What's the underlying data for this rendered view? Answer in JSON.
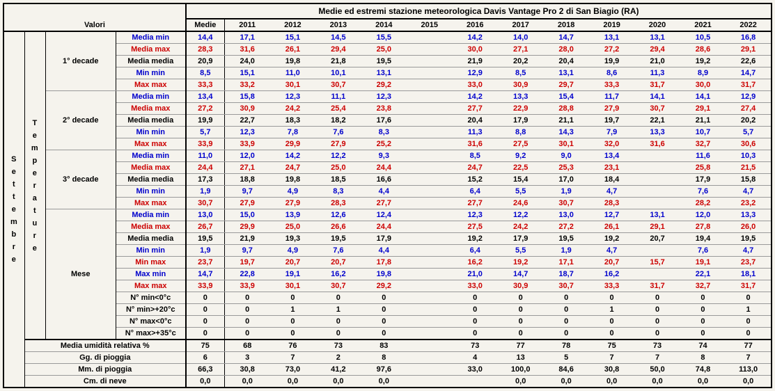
{
  "title": "Medie ed estremi stazione meteorologica Davis Vantage Pro 2 di San Biagio (RA)",
  "valori_label": "Valori",
  "medie_label": "Medie",
  "years": [
    "2011",
    "2012",
    "2013",
    "2014",
    "2015",
    "2016",
    "2017",
    "2018",
    "2019",
    "2020",
    "2021",
    "2022"
  ],
  "month": "Settembre",
  "temp_label": "Temperature",
  "decades": [
    "1° decade",
    "2° decade",
    "3° decade",
    "Mese"
  ],
  "stat_labels": {
    "media_min": "Media min",
    "media_max": "Media max",
    "media_media": "Media media",
    "min_min": "Min min",
    "max_max": "Max max",
    "min_max": "Min max",
    "max_min": "Max min",
    "n_min_lt0": "N° min<0°c",
    "n_min_gt20": "N° min>+20°c",
    "n_max_lt0": "N° max<0°c",
    "n_max_gt35": "N° max>+35°c"
  },
  "footer_labels": {
    "humidity": "Media umidità relativa %",
    "rain_days": "Gg. di pioggia",
    "rain_mm": "Mm. di pioggia",
    "snow_cm": "Cm. di neve"
  },
  "style_map": {
    "media_min": "blue",
    "media_max": "red",
    "media_media": "bold",
    "min_min": "blue",
    "max_max": "red",
    "min_max": "red",
    "max_min": "blue",
    "n_min_lt0": "bold",
    "n_min_gt20": "bold",
    "n_max_lt0": "bold",
    "n_max_gt35": "bold"
  },
  "blocks": [
    {
      "decade": "1° decade",
      "rows": [
        {
          "k": "media_min",
          "m": "14,4",
          "v": [
            "17,1",
            "15,1",
            "14,5",
            "15,5",
            "",
            "14,2",
            "14,0",
            "14,7",
            "13,1",
            "13,1",
            "10,5",
            "16,8"
          ]
        },
        {
          "k": "media_max",
          "m": "28,3",
          "v": [
            "31,6",
            "26,1",
            "29,4",
            "25,0",
            "",
            "30,0",
            "27,1",
            "28,0",
            "27,2",
            "29,4",
            "28,6",
            "29,1"
          ]
        },
        {
          "k": "media_media",
          "m": "20,9",
          "v": [
            "24,0",
            "19,8",
            "21,8",
            "19,5",
            "",
            "21,9",
            "20,2",
            "20,4",
            "19,9",
            "21,0",
            "19,2",
            "22,6"
          ]
        },
        {
          "k": "min_min",
          "m": "8,5",
          "v": [
            "15,1",
            "11,0",
            "10,1",
            "13,1",
            "",
            "12,9",
            "8,5",
            "13,1",
            "8,6",
            "11,3",
            "8,9",
            "14,7"
          ]
        },
        {
          "k": "max_max",
          "m": "33,3",
          "v": [
            "33,2",
            "30,1",
            "30,7",
            "29,2",
            "",
            "33,0",
            "30,9",
            "29,7",
            "33,3",
            "31,7",
            "30,0",
            "31,7"
          ]
        }
      ]
    },
    {
      "decade": "2° decade",
      "rows": [
        {
          "k": "media_min",
          "m": "13,4",
          "v": [
            "15,8",
            "12,3",
            "11,1",
            "12,3",
            "",
            "14,2",
            "13,3",
            "15,4",
            "11,7",
            "14,1",
            "14,1",
            "12,9"
          ]
        },
        {
          "k": "media_max",
          "m": "27,2",
          "v": [
            "30,9",
            "24,2",
            "25,4",
            "23,8",
            "",
            "27,7",
            "22,9",
            "28,8",
            "27,9",
            "30,7",
            "29,1",
            "27,4"
          ]
        },
        {
          "k": "media_media",
          "m": "19,9",
          "v": [
            "22,7",
            "18,3",
            "18,2",
            "17,6",
            "",
            "20,4",
            "17,9",
            "21,1",
            "19,7",
            "22,1",
            "21,1",
            "20,2"
          ]
        },
        {
          "k": "min_min",
          "m": "5,7",
          "v": [
            "12,3",
            "7,8",
            "7,6",
            "8,3",
            "",
            "11,3",
            "8,8",
            "14,3",
            "7,9",
            "13,3",
            "10,7",
            "5,7"
          ]
        },
        {
          "k": "max_max",
          "m": "33,9",
          "v": [
            "33,9",
            "29,9",
            "27,9",
            "25,2",
            "",
            "31,6",
            "27,5",
            "30,1",
            "32,0",
            "31,6",
            "32,7",
            "30,6"
          ]
        }
      ]
    },
    {
      "decade": "3° decade",
      "rows": [
        {
          "k": "media_min",
          "m": "11,0",
          "v": [
            "12,0",
            "14,2",
            "12,2",
            "9,3",
            "",
            "8,5",
            "9,2",
            "9,0",
            "13,4",
            "",
            "11,6",
            "10,3"
          ]
        },
        {
          "k": "media_max",
          "m": "24,4",
          "v": [
            "27,1",
            "24,7",
            "25,0",
            "24,4",
            "",
            "24,7",
            "22,5",
            "25,3",
            "23,1",
            "",
            "25,8",
            "21,5"
          ]
        },
        {
          "k": "media_media",
          "m": "17,3",
          "v": [
            "18,8",
            "19,8",
            "18,5",
            "16,6",
            "",
            "15,2",
            "15,4",
            "17,0",
            "18,4",
            "",
            "17,9",
            "15,8"
          ]
        },
        {
          "k": "min_min",
          "m": "1,9",
          "v": [
            "9,7",
            "4,9",
            "8,3",
            "4,4",
            "",
            "6,4",
            "5,5",
            "1,9",
            "4,7",
            "",
            "7,6",
            "4,7"
          ]
        },
        {
          "k": "max_max",
          "m": "30,7",
          "v": [
            "27,9",
            "27,9",
            "28,3",
            "27,7",
            "",
            "27,7",
            "24,6",
            "30,7",
            "28,3",
            "",
            "28,2",
            "23,2"
          ]
        }
      ]
    },
    {
      "decade": "Mese",
      "rows": [
        {
          "k": "media_min",
          "m": "13,0",
          "v": [
            "15,0",
            "13,9",
            "12,6",
            "12,4",
            "",
            "12,3",
            "12,2",
            "13,0",
            "12,7",
            "13,1",
            "12,0",
            "13,3"
          ]
        },
        {
          "k": "media_max",
          "m": "26,7",
          "v": [
            "29,9",
            "25,0",
            "26,6",
            "24,4",
            "",
            "27,5",
            "24,2",
            "27,2",
            "26,1",
            "29,1",
            "27,8",
            "26,0"
          ]
        },
        {
          "k": "media_media",
          "m": "19,5",
          "v": [
            "21,9",
            "19,3",
            "19,5",
            "17,9",
            "",
            "19,2",
            "17,9",
            "19,5",
            "19,2",
            "20,7",
            "19,4",
            "19,5"
          ]
        },
        {
          "k": "min_min",
          "m": "1,9",
          "v": [
            "9,7",
            "4,9",
            "7,6",
            "4,4",
            "",
            "6,4",
            "5,5",
            "1,9",
            "4,7",
            "",
            "7,6",
            "4,7"
          ]
        },
        {
          "k": "min_max",
          "m": "23,7",
          "v": [
            "19,7",
            "20,7",
            "20,7",
            "17,8",
            "",
            "16,2",
            "19,2",
            "17,1",
            "20,7",
            "15,7",
            "19,1",
            "23,7"
          ]
        },
        {
          "k": "max_min",
          "m": "14,7",
          "v": [
            "22,8",
            "19,1",
            "16,2",
            "19,8",
            "",
            "21,0",
            "14,7",
            "18,7",
            "16,2",
            "",
            "22,1",
            "18,1"
          ]
        },
        {
          "k": "max_max",
          "m": "33,9",
          "v": [
            "33,9",
            "30,1",
            "30,7",
            "29,2",
            "",
            "33,0",
            "30,9",
            "30,7",
            "33,3",
            "31,7",
            "32,7",
            "31,7"
          ]
        },
        {
          "k": "n_min_lt0",
          "m": "0",
          "v": [
            "0",
            "0",
            "0",
            "0",
            "",
            "0",
            "0",
            "0",
            "0",
            "0",
            "0",
            "0"
          ]
        },
        {
          "k": "n_min_gt20",
          "m": "0",
          "v": [
            "0",
            "1",
            "1",
            "0",
            "",
            "0",
            "0",
            "0",
            "1",
            "0",
            "0",
            "1"
          ]
        },
        {
          "k": "n_max_lt0",
          "m": "0",
          "v": [
            "0",
            "0",
            "0",
            "0",
            "",
            "0",
            "0",
            "0",
            "0",
            "0",
            "0",
            "0"
          ]
        },
        {
          "k": "n_max_gt35",
          "m": "0",
          "v": [
            "0",
            "0",
            "0",
            "0",
            "",
            "0",
            "0",
            "0",
            "0",
            "0",
            "0",
            "0"
          ]
        }
      ]
    }
  ],
  "footer": [
    {
      "k": "humidity",
      "m": "75",
      "v": [
        "68",
        "76",
        "73",
        "83",
        "",
        "73",
        "77",
        "78",
        "75",
        "73",
        "74",
        "77"
      ]
    },
    {
      "k": "rain_days",
      "m": "6",
      "v": [
        "3",
        "7",
        "2",
        "8",
        "",
        "4",
        "13",
        "5",
        "7",
        "7",
        "8",
        "7"
      ]
    },
    {
      "k": "rain_mm",
      "m": "66,3",
      "v": [
        "30,8",
        "73,0",
        "41,2",
        "97,6",
        "",
        "33,0",
        "100,0",
        "84,6",
        "30,8",
        "50,0",
        "74,8",
        "113,0"
      ]
    },
    {
      "k": "snow_cm",
      "m": "0,0",
      "v": [
        "0,0",
        "0,0",
        "0,0",
        "0,0",
        "",
        "",
        "0,0",
        "0,0",
        "0,0",
        "0,0",
        "0,0",
        "0,0"
      ]
    }
  ]
}
